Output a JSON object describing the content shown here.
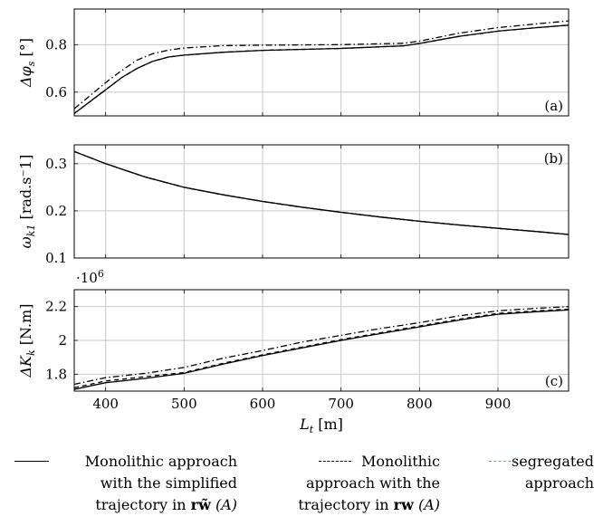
{
  "chart_data": [
    {
      "type": "line",
      "panel_tag": "(a)",
      "ylabel": "Δφ_s [°]",
      "xlim": [
        360,
        990
      ],
      "ylim": [
        0.5,
        0.95
      ],
      "yticks": [
        "0.6",
        "0.8"
      ],
      "ytick_values": [
        0.6,
        0.8
      ],
      "grid": true,
      "series": [
        {
          "style": "solid",
          "x": [
            360,
            380,
            400,
            420,
            440,
            460,
            480,
            500,
            550,
            600,
            700,
            780,
            800,
            850,
            900,
            950,
            990
          ],
          "y": [
            0.51,
            0.56,
            0.61,
            0.66,
            0.7,
            0.73,
            0.748,
            0.756,
            0.768,
            0.776,
            0.784,
            0.795,
            0.805,
            0.835,
            0.857,
            0.872,
            0.882
          ]
        },
        {
          "style": "dashed",
          "x": [
            360,
            380,
            400,
            420,
            440,
            460,
            480,
            500,
            550,
            600,
            700,
            780,
            800,
            850,
            900,
            950,
            990
          ],
          "y": [
            0.51,
            0.56,
            0.61,
            0.66,
            0.7,
            0.73,
            0.748,
            0.756,
            0.768,
            0.776,
            0.784,
            0.795,
            0.805,
            0.835,
            0.857,
            0.872,
            0.882
          ]
        },
        {
          "style": "dashdot",
          "x": [
            360,
            380,
            400,
            420,
            440,
            460,
            480,
            500,
            550,
            600,
            700,
            780,
            800,
            850,
            900,
            950,
            990
          ],
          "y": [
            0.53,
            0.585,
            0.64,
            0.69,
            0.735,
            0.762,
            0.777,
            0.786,
            0.796,
            0.798,
            0.8,
            0.806,
            0.815,
            0.848,
            0.872,
            0.888,
            0.9
          ]
        }
      ]
    },
    {
      "type": "line",
      "panel_tag": "(b)",
      "ylabel": "ω_k1 [rad.s⁻1]",
      "xlim": [
        360,
        990
      ],
      "ylim": [
        0.1,
        0.34
      ],
      "yticks": [
        "0.1",
        "0.2",
        "0.3"
      ],
      "ytick_values": [
        0.1,
        0.2,
        0.3
      ],
      "grid": true,
      "series": [
        {
          "style": "solid",
          "x": [
            360,
            400,
            450,
            500,
            550,
            600,
            650,
            700,
            750,
            800,
            850,
            900,
            950,
            990
          ],
          "y": [
            0.326,
            0.3,
            0.272,
            0.25,
            0.234,
            0.22,
            0.208,
            0.197,
            0.187,
            0.178,
            0.17,
            0.163,
            0.156,
            0.15
          ]
        },
        {
          "style": "dashed",
          "x": [
            360,
            400,
            450,
            500,
            550,
            600,
            650,
            700,
            750,
            800,
            850,
            900,
            950,
            990
          ],
          "y": [
            0.326,
            0.3,
            0.272,
            0.25,
            0.234,
            0.22,
            0.208,
            0.197,
            0.187,
            0.178,
            0.17,
            0.163,
            0.156,
            0.15
          ]
        },
        {
          "style": "dashdot",
          "x": [
            360,
            400,
            450,
            500,
            550,
            600,
            650,
            700,
            750,
            800,
            850,
            900,
            950,
            990
          ],
          "y": [
            0.326,
            0.3,
            0.272,
            0.25,
            0.234,
            0.22,
            0.208,
            0.197,
            0.187,
            0.178,
            0.17,
            0.163,
            0.156,
            0.15
          ]
        }
      ]
    },
    {
      "type": "line",
      "panel_tag": "(c)",
      "ylabel": "ΔK_k [N.m]",
      "scale_note": "·10",
      "scale_exp": "6",
      "xlabel": "L_t [m]",
      "xlim": [
        360,
        990
      ],
      "ylim": [
        1.7,
        2.3
      ],
      "xticks": [
        "400",
        "500",
        "600",
        "700",
        "800",
        "900"
      ],
      "xtick_values": [
        400,
        500,
        600,
        700,
        800,
        900
      ],
      "yticks": [
        "1.8",
        "2",
        "2.2"
      ],
      "ytick_values": [
        1.8,
        2.0,
        2.2
      ],
      "grid": true,
      "series": [
        {
          "style": "solid",
          "x": [
            360,
            400,
            450,
            500,
            550,
            600,
            650,
            700,
            750,
            800,
            850,
            900,
            950,
            990
          ],
          "y": [
            1.71,
            1.75,
            1.775,
            1.805,
            1.86,
            1.91,
            1.955,
            2.0,
            2.04,
            2.08,
            2.12,
            2.155,
            2.17,
            2.18
          ]
        },
        {
          "style": "dashed",
          "x": [
            360,
            400,
            450,
            500,
            550,
            600,
            650,
            700,
            750,
            800,
            850,
            900,
            950,
            990
          ],
          "y": [
            1.72,
            1.76,
            1.785,
            1.81,
            1.865,
            1.915,
            1.96,
            2.005,
            2.045,
            2.085,
            2.125,
            2.16,
            2.175,
            2.185
          ]
        },
        {
          "style": "dashdot",
          "x": [
            360,
            400,
            450,
            500,
            550,
            600,
            650,
            700,
            750,
            800,
            850,
            900,
            950,
            990
          ],
          "y": [
            1.74,
            1.78,
            1.805,
            1.84,
            1.895,
            1.94,
            1.99,
            2.03,
            2.07,
            2.105,
            2.145,
            2.175,
            2.19,
            2.2
          ]
        }
      ]
    }
  ],
  "legend": [
    {
      "line1": "Monolithic approach",
      "line2": "with the simplified",
      "line3_pre": "trajectory in ",
      "line3_bold": "rw̃",
      "line3_post": " (A)",
      "style": "solid",
      "color": "#000000"
    },
    {
      "line1": "Monolithic",
      "line2": "approach with the",
      "line3_pre": "trajectory in ",
      "line3_bold": "rw",
      "line3_post": " (A)",
      "style": "dashed",
      "color": "#000000"
    },
    {
      "line1": "segregated",
      "line2": "approach",
      "line3_pre": "",
      "line3_bold": "",
      "line3_post": "",
      "style": "dashdot",
      "color": "#1f77b4"
    }
  ]
}
